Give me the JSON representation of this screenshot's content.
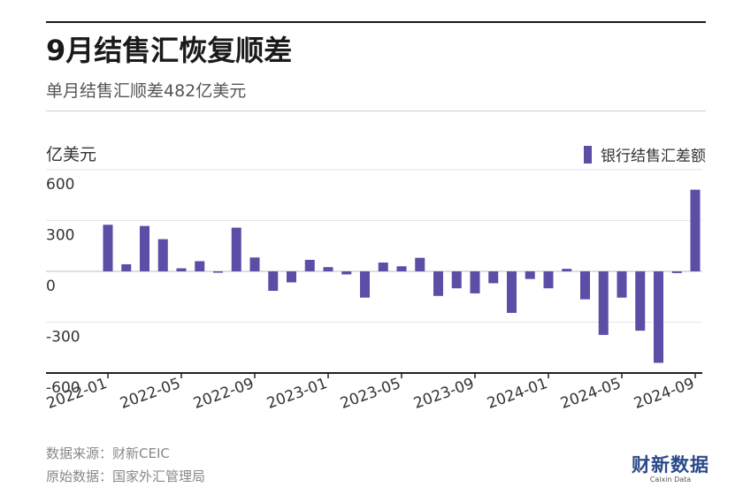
{
  "title": "9月结售汇恢复顺差",
  "subtitle": "单月结售汇顺差482亿美元",
  "unit_label": "亿美元",
  "footer": {
    "source": "数据来源：财新CEIC",
    "original": "原始数据：国家外汇管理局"
  },
  "brand": {
    "cn": "财新数据",
    "en": "Caixin Data"
  },
  "colors": {
    "bar": "#5a4ea6",
    "grid": "#e6e6e6",
    "zero": "#bdbdbd",
    "axis": "#222222"
  },
  "chart_data": {
    "type": "bar",
    "ylim": [
      -600,
      600
    ],
    "yticks": [
      600,
      300,
      0,
      -300,
      -600
    ],
    "ytick_labels": [
      "600",
      "300",
      "0",
      "-300",
      "-600"
    ],
    "grid": true,
    "legend": "top-right",
    "x_tick_labels": [
      {
        "index": 0,
        "label": "2022-01"
      },
      {
        "index": 4,
        "label": "2022-05"
      },
      {
        "index": 8,
        "label": "2022-09"
      },
      {
        "index": 12,
        "label": "2023-01"
      },
      {
        "index": 16,
        "label": "2023-05"
      },
      {
        "index": 20,
        "label": "2023-09"
      },
      {
        "index": 24,
        "label": "2024-01"
      },
      {
        "index": 28,
        "label": "2024-05"
      },
      {
        "index": 32,
        "label": "2024-09"
      }
    ],
    "series": [
      {
        "name": "银行结售汇差额",
        "categories": [
          "2022-01",
          "2022-02",
          "2022-03",
          "2022-04",
          "2022-05",
          "2022-06",
          "2022-07",
          "2022-08",
          "2022-09",
          "2022-10",
          "2022-11",
          "2022-12",
          "2023-01",
          "2023-02",
          "2023-03",
          "2023-04",
          "2023-05",
          "2023-06",
          "2023-07",
          "2023-08",
          "2023-09",
          "2023-10",
          "2023-11",
          "2023-12",
          "2024-01",
          "2024-02",
          "2024-03",
          "2024-04",
          "2024-05",
          "2024-06",
          "2024-07",
          "2024-08",
          "2024-09"
        ],
        "values": [
          275,
          42,
          268,
          190,
          18,
          60,
          -8,
          258,
          82,
          -115,
          -65,
          68,
          25,
          -18,
          -155,
          52,
          30,
          80,
          -145,
          -100,
          -130,
          -70,
          -245,
          -45,
          -100,
          15,
          -165,
          -375,
          -155,
          -350,
          -540,
          -10,
          482
        ]
      }
    ]
  }
}
